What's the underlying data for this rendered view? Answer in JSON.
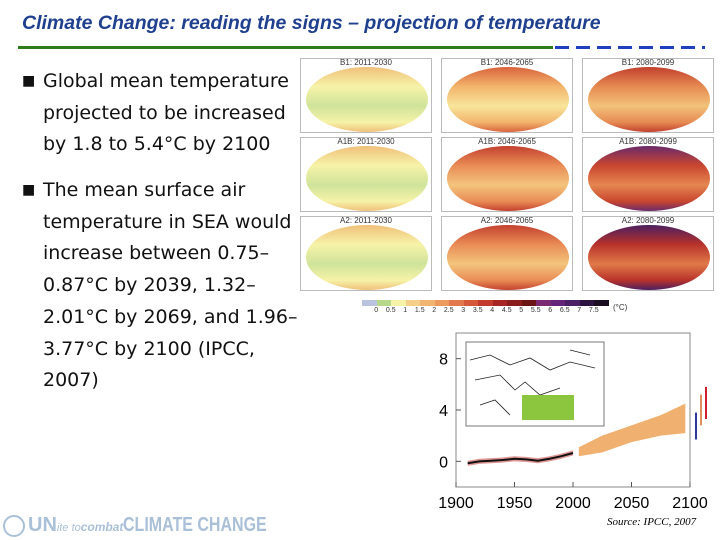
{
  "slide": {
    "title": "Climate Change: reading the signs  – projection of temperature",
    "bullets": [
      "Global mean temperature projected to be increased by 1.8 to 5.4°C by 2100",
      "The mean surface air temperature in SEA would increase between 0.75–0.87°C by 2039, 1.32–2.01°C by 2069, and 1.96–3.77°C by 2100 (IPCC, 2007)"
    ],
    "bullet_icon": "square-bullet",
    "source": "Source: IPCC, 2007",
    "logo": {
      "un": "UN",
      "ite": "ite to ",
      "combat": "combat",
      "cc": "CLIMATE CHANGE"
    }
  },
  "maps": {
    "panels": [
      {
        "label": "B1: 2011-2030",
        "colors": [
          "#cfe39a",
          "#f6f3a8",
          "#f0c07a"
        ]
      },
      {
        "label": "B1: 2046-2065",
        "colors": [
          "#f7e59a",
          "#f3b46c",
          "#d9633c"
        ]
      },
      {
        "label": "B1: 2080-2099",
        "colors": [
          "#f2c27a",
          "#e68a52",
          "#c2402e"
        ]
      },
      {
        "label": "A1B: 2011-2030",
        "colors": [
          "#cfe39a",
          "#f6f3a8",
          "#f0c07a"
        ]
      },
      {
        "label": "A1B: 2046-2065",
        "colors": [
          "#f3c47c",
          "#e98c55",
          "#c4412f"
        ]
      },
      {
        "label": "A1B: 2080-2099",
        "colors": [
          "#e58650",
          "#c9462f",
          "#6a2a6a"
        ]
      },
      {
        "label": "A2: 2011-2030",
        "colors": [
          "#cfe39a",
          "#f6f3a8",
          "#f0c07a"
        ]
      },
      {
        "label": "A2: 2046-2065",
        "colors": [
          "#f3c47c",
          "#e98c55",
          "#c4412f"
        ]
      },
      {
        "label": "A2: 2080-2099",
        "colors": [
          "#e07a48",
          "#b8322a",
          "#4b1f5f"
        ]
      }
    ],
    "colorbar": {
      "colors": [
        "#b9c3e0",
        "#b6d88a",
        "#f6f3a8",
        "#f5d08a",
        "#f2b571",
        "#ec9a5e",
        "#e2784b",
        "#d6583b",
        "#c23a2e",
        "#a82525",
        "#8a1c1c",
        "#6a1414",
        "#7a2a70",
        "#63247a",
        "#4a1f66",
        "#2c1340",
        "#1a0d20"
      ],
      "ticks": [
        "0",
        "0.5",
        "1",
        "1.5",
        "2",
        "2.5",
        "3",
        "3.5",
        "4",
        "4.5",
        "5",
        "5.5",
        "6",
        "6.5",
        "7",
        "7.5"
      ],
      "unit": "(°C)"
    }
  },
  "chart_data": {
    "type": "line",
    "xlim": [
      1900,
      2100
    ],
    "ylim": [
      -2,
      10
    ],
    "xticks": [
      "1900",
      "1950",
      "2000",
      "2050",
      "2100"
    ],
    "yticks": [
      "0",
      "4",
      "8"
    ],
    "observed": {
      "color": "#111111",
      "band_color": "#d46a6a",
      "x": [
        1910,
        1920,
        1930,
        1940,
        1950,
        1960,
        1970,
        1980,
        1990,
        2000
      ],
      "y": [
        -0.15,
        0.0,
        0.05,
        0.1,
        0.2,
        0.15,
        0.05,
        0.2,
        0.4,
        0.65
      ]
    },
    "projection": {
      "color": "#f0b070",
      "x": [
        2005,
        2025,
        2050,
        2075,
        2096
      ],
      "low": [
        0.4,
        0.7,
        1.5,
        2.0,
        2.2
      ],
      "high": [
        1.1,
        2.0,
        2.8,
        3.6,
        4.5
      ]
    },
    "range_bars": [
      {
        "color": "#2a3a9a",
        "low": 1.7,
        "high": 3.8
      },
      {
        "color": "#e09060",
        "low": 2.8,
        "high": 5.2
      },
      {
        "color": "#d02030",
        "low": 3.3,
        "high": 5.8
      }
    ],
    "inset": {
      "region_color": "#8cc63f"
    }
  }
}
